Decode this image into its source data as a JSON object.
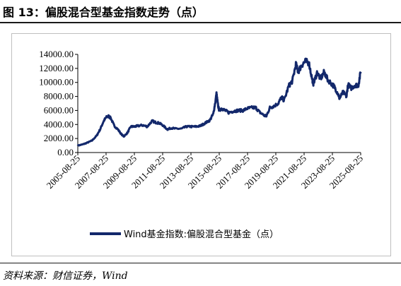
{
  "header": {
    "title": "图 13：偏股混合型基金指数走势（点）"
  },
  "footer": {
    "source": "资料来源：财信证券，Wind"
  },
  "chart_data": {
    "type": "line",
    "title": "",
    "xlabel": "",
    "ylabel": "",
    "ylim": [
      0,
      14000
    ],
    "yticks": [
      "0.00",
      "2000.00",
      "4000.00",
      "6000.00",
      "8000.00",
      "10000.00",
      "12000.00",
      "14000.00"
    ],
    "xticks": [
      "2005-08-25",
      "2007-08-25",
      "2009-08-25",
      "2011-08-25",
      "2013-08-25",
      "2015-08-25",
      "2017-08-25",
      "2019-08-25",
      "2021-08-25",
      "2023-08-25",
      "2025-08-25"
    ],
    "grid": false,
    "legend": "bottom-center",
    "series": [
      {
        "name": "Wind基金指数:偏股混合型基金（点）",
        "color": "#13286b",
        "x": [
          "2005-08-25",
          "2005-12-25",
          "2006-04-25",
          "2006-08-25",
          "2006-12-25",
          "2007-03-25",
          "2007-06-25",
          "2007-08-25",
          "2007-10-25",
          "2007-12-25",
          "2008-03-25",
          "2008-06-25",
          "2008-09-25",
          "2008-11-25",
          "2009-02-25",
          "2009-05-25",
          "2009-08-25",
          "2009-11-25",
          "2010-03-25",
          "2010-07-25",
          "2010-11-25",
          "2011-02-25",
          "2011-05-25",
          "2011-08-25",
          "2011-12-25",
          "2012-03-25",
          "2012-07-25",
          "2012-12-25",
          "2013-04-25",
          "2013-08-25",
          "2013-12-25",
          "2014-04-25",
          "2014-08-25",
          "2014-12-25",
          "2015-03-25",
          "2015-05-25",
          "2015-06-15",
          "2015-07-25",
          "2015-08-25",
          "2015-10-25",
          "2016-01-25",
          "2016-04-25",
          "2016-08-25",
          "2016-12-25",
          "2017-04-25",
          "2017-08-25",
          "2017-12-25",
          "2018-03-25",
          "2018-06-25",
          "2018-10-25",
          "2018-12-25",
          "2019-03-25",
          "2019-06-25",
          "2019-10-25",
          "2020-01-25",
          "2020-03-25",
          "2020-07-25",
          "2020-10-25",
          "2021-01-25",
          "2021-03-25",
          "2021-06-25",
          "2021-09-25",
          "2021-12-25",
          "2022-03-25",
          "2022-04-25",
          "2022-07-25",
          "2022-10-25",
          "2023-01-25",
          "2023-04-25",
          "2023-08-25",
          "2023-10-25",
          "2024-01-25",
          "2024-02-25",
          "2024-05-25",
          "2024-08-25",
          "2024-09-30",
          "2024-12-25",
          "2025-03-25",
          "2025-06-25",
          "2025-08-25"
        ],
        "values": [
          1000,
          1150,
          1400,
          1700,
          2400,
          3300,
          4500,
          5000,
          5200,
          4900,
          3800,
          3300,
          2600,
          2300,
          2800,
          3700,
          3700,
          3800,
          3900,
          3700,
          4500,
          4300,
          4200,
          3900,
          3300,
          3500,
          3400,
          3400,
          3700,
          3700,
          3700,
          3800,
          4200,
          4600,
          5500,
          7500,
          8400,
          6700,
          6000,
          6300,
          6000,
          5700,
          5900,
          6000,
          6000,
          6300,
          6400,
          6400,
          5800,
          5300,
          5200,
          6400,
          6600,
          7000,
          7900,
          7400,
          9500,
          10200,
          12600,
          11500,
          12500,
          13000,
          12800,
          10400,
          9800,
          11400,
          10500,
          11500,
          10400,
          9700,
          9300,
          8300,
          7700,
          8600,
          8000,
          9700,
          9200,
          9600,
          9600,
          11500
        ]
      }
    ]
  }
}
